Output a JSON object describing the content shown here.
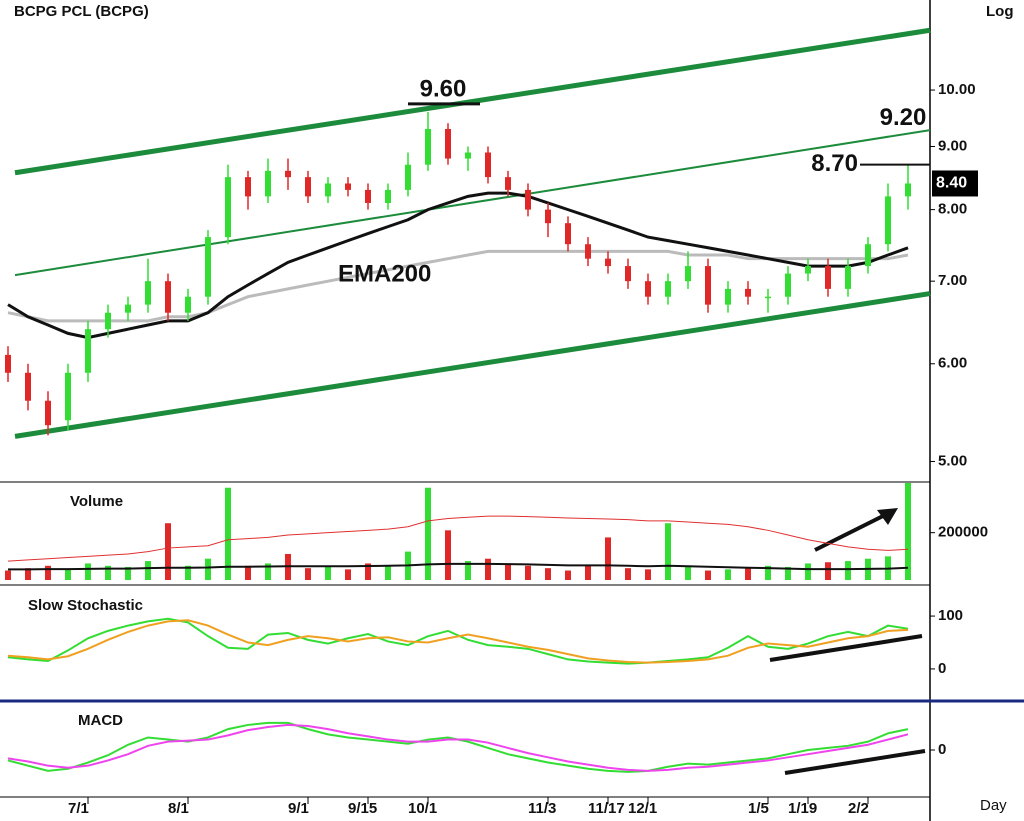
{
  "chart_data": [
    {
      "type": "candlestick",
      "title": "BCPG  PCL  (BCPG)",
      "y_axis_label": "Log",
      "x_axis_label": "Day",
      "log_scale": true,
      "categories": [
        null,
        null,
        null,
        null,
        "7/1",
        null,
        null,
        null,
        null,
        "8/1",
        null,
        null,
        null,
        null,
        null,
        "9/1",
        null,
        null,
        "9/15",
        null,
        null,
        "10/1",
        null,
        null,
        null,
        null,
        null,
        "11/3",
        null,
        null,
        "11/17",
        null,
        "12/1",
        null,
        null,
        null,
        null,
        null,
        "1/5",
        null,
        "1/19",
        null,
        null,
        "2/2",
        null,
        null
      ],
      "open": [
        6.1,
        5.9,
        5.6,
        5.4,
        5.9,
        6.4,
        6.6,
        6.7,
        7.0,
        6.6,
        6.8,
        7.6,
        8.5,
        8.2,
        8.6,
        8.5,
        8.2,
        8.4,
        8.3,
        8.1,
        8.3,
        8.7,
        9.3,
        8.8,
        8.9,
        8.5,
        8.3,
        8.0,
        7.8,
        7.5,
        7.3,
        7.2,
        7.0,
        6.8,
        7.0,
        7.2,
        6.7,
        6.9,
        6.8,
        6.8,
        7.1,
        7.2,
        6.9,
        7.2,
        7.5,
        8.2
      ],
      "high": [
        6.2,
        6.0,
        5.7,
        6.0,
        6.5,
        6.7,
        6.8,
        7.3,
        7.1,
        6.9,
        7.7,
        8.7,
        8.6,
        8.8,
        8.8,
        8.6,
        8.5,
        8.5,
        8.4,
        8.4,
        8.9,
        9.6,
        9.4,
        9.0,
        9.0,
        8.6,
        8.4,
        8.1,
        7.9,
        7.6,
        7.4,
        7.3,
        7.1,
        7.1,
        7.4,
        7.3,
        7.0,
        7.0,
        6.9,
        7.2,
        7.3,
        7.3,
        7.3,
        7.6,
        8.4,
        8.7
      ],
      "low": [
        5.8,
        5.5,
        5.25,
        5.3,
        5.8,
        6.3,
        6.5,
        6.6,
        6.5,
        6.5,
        6.7,
        7.5,
        8.0,
        8.1,
        8.3,
        8.1,
        8.1,
        8.2,
        8.0,
        8.0,
        8.2,
        8.6,
        8.7,
        8.6,
        8.4,
        8.2,
        7.9,
        7.6,
        7.4,
        7.2,
        7.1,
        6.9,
        6.7,
        6.7,
        6.9,
        6.6,
        6.6,
        6.7,
        6.6,
        6.7,
        7.0,
        6.8,
        6.8,
        7.1,
        7.4,
        8.0
      ],
      "close": [
        5.9,
        5.6,
        5.35,
        5.9,
        6.4,
        6.6,
        6.7,
        7.0,
        6.6,
        6.8,
        7.6,
        8.5,
        8.2,
        8.6,
        8.5,
        8.2,
        8.4,
        8.3,
        8.1,
        8.3,
        8.7,
        9.3,
        8.8,
        8.9,
        8.5,
        8.3,
        8.0,
        7.8,
        7.5,
        7.3,
        7.2,
        7.0,
        6.8,
        7.0,
        7.2,
        6.7,
        6.9,
        6.8,
        6.8,
        7.1,
        7.2,
        6.9,
        7.2,
        7.5,
        8.2,
        8.4
      ],
      "up_color": "#33dd33",
      "down_color": "#e02828",
      "series": [
        {
          "name": "EMA200",
          "color": "#bbbbbb",
          "values": [
            6.6,
            6.55,
            6.5,
            6.5,
            6.5,
            6.5,
            6.5,
            6.5,
            6.55,
            6.55,
            6.6,
            6.7,
            6.8,
            6.85,
            6.9,
            6.95,
            7.0,
            7.05,
            7.1,
            7.15,
            7.2,
            7.25,
            7.3,
            7.35,
            7.4,
            7.4,
            7.4,
            7.4,
            7.4,
            7.4,
            7.4,
            7.4,
            7.4,
            7.4,
            7.35,
            7.35,
            7.35,
            7.3,
            7.3,
            7.3,
            7.3,
            7.3,
            7.3,
            7.3,
            7.3,
            7.35
          ]
        },
        {
          "color": "#111111",
          "values": [
            6.7,
            6.55,
            6.45,
            6.35,
            6.3,
            6.35,
            6.4,
            6.45,
            6.5,
            6.5,
            6.6,
            6.8,
            6.95,
            7.1,
            7.25,
            7.35,
            7.45,
            7.55,
            7.65,
            7.75,
            7.85,
            8.0,
            8.1,
            8.2,
            8.25,
            8.25,
            8.2,
            8.1,
            8.0,
            7.9,
            7.8,
            7.7,
            7.6,
            7.55,
            7.5,
            7.45,
            7.4,
            7.35,
            7.3,
            7.25,
            7.2,
            7.2,
            7.2,
            7.25,
            7.35,
            7.45
          ]
        }
      ],
      "channel": [
        {
          "start": 8.57,
          "end": 11.18
        },
        {
          "start": 7.08,
          "end": 9.28
        },
        {
          "start": 5.24,
          "end": 6.84
        }
      ],
      "channel_color": "#1c8c3c",
      "annotations": [
        {
          "value": 9.6,
          "label": "9.60"
        },
        {
          "value": 9.2,
          "label": "9.20"
        },
        {
          "value": 8.7,
          "label": "8.70"
        }
      ],
      "last_price": {
        "value": 8.4,
        "label": "8.40"
      },
      "ylim": [
        4.83,
        11.83
      ],
      "yticks": [
        {
          "value": 5,
          "label": "5.00"
        },
        {
          "value": 6,
          "label": "6.00"
        },
        {
          "value": 7,
          "label": "7.00"
        },
        {
          "value": 8,
          "label": "8.00"
        },
        {
          "value": 9,
          "label": "9.00"
        },
        {
          "value": 10,
          "label": "10.00"
        }
      ]
    },
    {
      "type": "bar",
      "title": "Volume",
      "values": [
        40000,
        50000,
        60000,
        45000,
        70000,
        60000,
        55000,
        80000,
        240000,
        60000,
        90000,
        390000,
        60000,
        70000,
        110000,
        50000,
        60000,
        45000,
        70000,
        60000,
        120000,
        390000,
        210000,
        80000,
        90000,
        70000,
        60000,
        50000,
        40000,
        60000,
        180000,
        50000,
        45000,
        240000,
        60000,
        40000,
        45000,
        50000,
        60000,
        55000,
        70000,
        75000,
        80000,
        90000,
        100000,
        410000
      ],
      "series": [
        {
          "color": "#e03030",
          "values": [
            80000,
            85000,
            90000,
            95000,
            100000,
            105000,
            110000,
            120000,
            135000,
            140000,
            145000,
            170000,
            175000,
            180000,
            190000,
            195000,
            200000,
            205000,
            210000,
            215000,
            225000,
            250000,
            260000,
            265000,
            270000,
            270000,
            268000,
            265000,
            262000,
            260000,
            258000,
            255000,
            250000,
            250000,
            245000,
            240000,
            235000,
            225000,
            210000,
            190000,
            170000,
            155000,
            140000,
            130000,
            125000,
            130000
          ]
        },
        {
          "color": "#111111",
          "values": [
            45000,
            45000,
            46000,
            46000,
            47000,
            48000,
            48000,
            50000,
            52000,
            52000,
            53000,
            56000,
            56000,
            57000,
            58000,
            58000,
            58000,
            58000,
            59000,
            60000,
            62000,
            66000,
            68000,
            68000,
            68000,
            67000,
            66000,
            64000,
            62000,
            62000,
            62000,
            60000,
            58000,
            60000,
            58000,
            56000,
            54000,
            52000,
            50000,
            48000,
            46000,
            46000,
            46000,
            47000,
            48000,
            52000
          ]
        }
      ],
      "ylim": [
        0,
        410000
      ],
      "yticks": [
        200000
      ]
    },
    {
      "type": "line",
      "title": "Slow  Stochastic",
      "series": [
        {
          "color": "#33dd33",
          "values": [
            22,
            18,
            15,
            35,
            58,
            72,
            82,
            90,
            95,
            88,
            62,
            40,
            38,
            65,
            68,
            55,
            48,
            58,
            66,
            52,
            45,
            62,
            72,
            55,
            45,
            42,
            38,
            28,
            18,
            14,
            12,
            10,
            12,
            15,
            18,
            22,
            40,
            62,
            42,
            38,
            48,
            62,
            70,
            62,
            82,
            76
          ]
        },
        {
          "color": "#f0a020",
          "values": [
            25,
            22,
            18,
            24,
            38,
            55,
            70,
            82,
            90,
            92,
            82,
            65,
            50,
            45,
            55,
            62,
            58,
            52,
            58,
            60,
            52,
            50,
            58,
            65,
            58,
            50,
            42,
            36,
            28,
            20,
            16,
            13,
            12,
            13,
            15,
            18,
            25,
            40,
            48,
            45,
            42,
            50,
            58,
            62,
            72,
            74
          ]
        }
      ],
      "ylim": [
        -55,
        155
      ],
      "yticks": [
        0,
        100
      ]
    },
    {
      "type": "line",
      "title": "MACD",
      "series": [
        {
          "color": "#33dd33",
          "values": [
            -0.1,
            -0.15,
            -0.2,
            -0.18,
            -0.12,
            -0.05,
            0.05,
            0.12,
            0.1,
            0.08,
            0.12,
            0.2,
            0.24,
            0.26,
            0.26,
            0.2,
            0.15,
            0.12,
            0.1,
            0.08,
            0.06,
            0.1,
            0.12,
            0.08,
            0.02,
            -0.04,
            -0.08,
            -0.12,
            -0.15,
            -0.18,
            -0.2,
            -0.21,
            -0.2,
            -0.16,
            -0.13,
            -0.14,
            -0.12,
            -0.1,
            -0.08,
            -0.04,
            0.0,
            0.02,
            0.04,
            0.08,
            0.16,
            0.2
          ]
        },
        {
          "color": "#ee44ee",
          "values": [
            -0.08,
            -0.11,
            -0.15,
            -0.17,
            -0.15,
            -0.1,
            -0.04,
            0.04,
            0.08,
            0.09,
            0.1,
            0.14,
            0.19,
            0.22,
            0.24,
            0.23,
            0.2,
            0.16,
            0.13,
            0.1,
            0.08,
            0.08,
            0.1,
            0.1,
            0.07,
            0.02,
            -0.03,
            -0.07,
            -0.11,
            -0.14,
            -0.17,
            -0.19,
            -0.2,
            -0.19,
            -0.17,
            -0.16,
            -0.14,
            -0.12,
            -0.1,
            -0.07,
            -0.04,
            -0.01,
            0.02,
            0.05,
            0.1,
            0.15
          ]
        }
      ],
      "ylim": [
        -0.45,
        0.45
      ],
      "yticks": [
        0
      ]
    }
  ]
}
